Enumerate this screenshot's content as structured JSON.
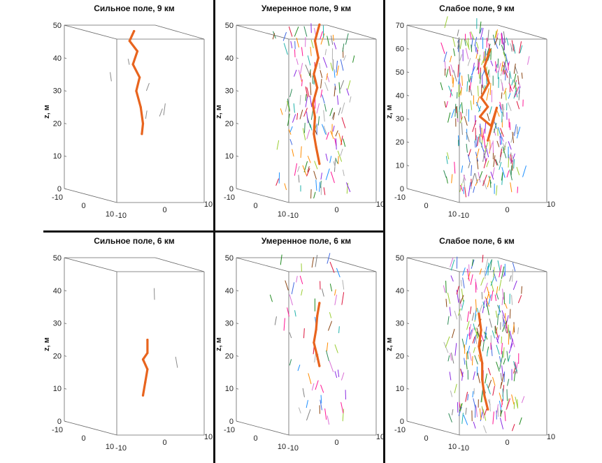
{
  "figure": {
    "colors": {
      "main_path": "#e8641e",
      "segment_palette": [
        "#8a2be2",
        "#2e8b57",
        "#ff8c00",
        "#1e90ff",
        "#dc143c",
        "#9acd32",
        "#ff1493",
        "#20b2aa",
        "#8b4513",
        "#4169e1",
        "#da70d6",
        "#228b22",
        "#808080",
        "#b0b0b0"
      ]
    }
  },
  "chart_data": [
    {
      "type": "scatter",
      "title": "Сильное поле, 9 км",
      "zlabel": "z, м",
      "zlim": [
        0,
        50
      ],
      "zticks": [
        "0",
        "10",
        "20",
        "30",
        "40",
        "50"
      ],
      "xticks": [
        "-10",
        "0",
        "10"
      ],
      "yticks": [
        "-10",
        "0",
        "10"
      ],
      "background_segments": 6,
      "main_path": [
        {
          "x": -3,
          "y": -2,
          "z": 50
        },
        {
          "x": -5,
          "y": -2,
          "z": 47
        },
        {
          "x": -2,
          "y": -1,
          "z": 44
        },
        {
          "x": -4,
          "y": -1,
          "z": 40
        },
        {
          "x": -1,
          "y": -1,
          "z": 36
        },
        {
          "x": -3,
          "y": 0,
          "z": 32
        },
        {
          "x": -1,
          "y": 0,
          "z": 27
        },
        {
          "x": 0,
          "y": 0,
          "z": 22
        },
        {
          "x": -1,
          "y": 1,
          "z": 19
        }
      ]
    },
    {
      "type": "scatter",
      "title": "Умеренное поле, 9 км",
      "zlabel": "z, м",
      "zlim": [
        0,
        50
      ],
      "zticks": [
        "0",
        "10",
        "20",
        "30",
        "40",
        "50"
      ],
      "xticks": [
        "-10",
        "0",
        "10"
      ],
      "yticks": [
        "-10",
        "0",
        "10"
      ],
      "background_segments": 160,
      "main_path": [
        {
          "x": 3,
          "y": -2,
          "z": 52
        },
        {
          "x": 1,
          "y": -2,
          "z": 47
        },
        {
          "x": 2,
          "y": -1,
          "z": 42
        },
        {
          "x": 0,
          "y": -1,
          "z": 37
        },
        {
          "x": 1,
          "y": 0,
          "z": 33
        },
        {
          "x": -1,
          "y": 0,
          "z": 28
        },
        {
          "x": 0,
          "y": 0,
          "z": 24
        },
        {
          "x": -1,
          "y": 1,
          "z": 19
        },
        {
          "x": 0,
          "y": 1,
          "z": 15
        },
        {
          "x": 1,
          "y": 2,
          "z": 10
        }
      ]
    },
    {
      "type": "scatter",
      "title": "Слабое поле, 9 км",
      "zlabel": "z, м",
      "zlim": [
        0,
        70
      ],
      "zticks": [
        "0",
        "10",
        "20",
        "30",
        "40",
        "50",
        "60",
        "70"
      ],
      "xticks": [
        "-10",
        "0",
        "10"
      ],
      "yticks": [
        "-10",
        "0",
        "10"
      ],
      "background_segments": 320,
      "main_path": [
        {
          "x": 3,
          "y": -2,
          "z": 62
        },
        {
          "x": 0,
          "y": -1,
          "z": 55
        },
        {
          "x": 2,
          "y": -1,
          "z": 48
        },
        {
          "x": -2,
          "y": 0,
          "z": 42
        },
        {
          "x": 1,
          "y": 0,
          "z": 38
        },
        {
          "x": -3,
          "y": 1,
          "z": 34
        },
        {
          "x": 2,
          "y": 1,
          "z": 30
        },
        {
          "x": 4,
          "y": 2,
          "z": 38
        },
        {
          "x": 0,
          "y": 2,
          "z": 24
        }
      ]
    },
    {
      "type": "scatter",
      "title": "Сильное поле, 6 км",
      "zlabel": "z, м",
      "zlim": [
        0,
        50
      ],
      "zticks": [
        "0",
        "10",
        "20",
        "30",
        "40",
        "50"
      ],
      "xticks": [
        "-10",
        "0",
        "10"
      ],
      "yticks": [
        "-10",
        "0",
        "10"
      ],
      "background_segments": 2,
      "main_path": [
        {
          "x": 2,
          "y": 0,
          "z": 27
        },
        {
          "x": 2,
          "y": 0,
          "z": 23
        },
        {
          "x": 0,
          "y": 0,
          "z": 21
        },
        {
          "x": 2,
          "y": 0,
          "z": 18
        },
        {
          "x": 1,
          "y": 0,
          "z": 14
        },
        {
          "x": 0,
          "y": 0,
          "z": 10
        }
      ]
    },
    {
      "type": "scatter",
      "title": "Умеренное поле, 6 км",
      "zlabel": "z, м",
      "zlim": [
        0,
        50
      ],
      "zticks": [
        "0",
        "10",
        "20",
        "30",
        "40",
        "50"
      ],
      "xticks": [
        "-10",
        "0",
        "10"
      ],
      "yticks": [
        "-10",
        "0",
        "10"
      ],
      "background_segments": 60,
      "main_path": [
        {
          "x": 3,
          "y": -2,
          "z": 38
        },
        {
          "x": 2,
          "y": -2,
          "z": 34
        },
        {
          "x": 1,
          "y": -1,
          "z": 30
        },
        {
          "x": 0,
          "y": -1,
          "z": 26
        },
        {
          "x": 1,
          "y": 0,
          "z": 22
        },
        {
          "x": 2,
          "y": 0,
          "z": 19
        }
      ]
    },
    {
      "type": "scatter",
      "title": "Слабое поле, 6 км",
      "zlabel": "z, м",
      "zlim": [
        0,
        50
      ],
      "zticks": [
        "0",
        "10",
        "20",
        "30",
        "40",
        "50"
      ],
      "xticks": [
        "-10",
        "0",
        "10"
      ],
      "yticks": [
        "-10",
        "0",
        "10"
      ],
      "background_segments": 260,
      "main_path": [
        {
          "x": -3,
          "y": 0,
          "z": 35
        },
        {
          "x": -2,
          "y": 0,
          "z": 30
        },
        {
          "x": -3,
          "y": 0,
          "z": 25
        },
        {
          "x": -2,
          "y": 1,
          "z": 20
        },
        {
          "x": -2,
          "y": 1,
          "z": 15
        },
        {
          "x": -1,
          "y": 1,
          "z": 10
        },
        {
          "x": 0,
          "y": 2,
          "z": 6
        }
      ]
    }
  ]
}
